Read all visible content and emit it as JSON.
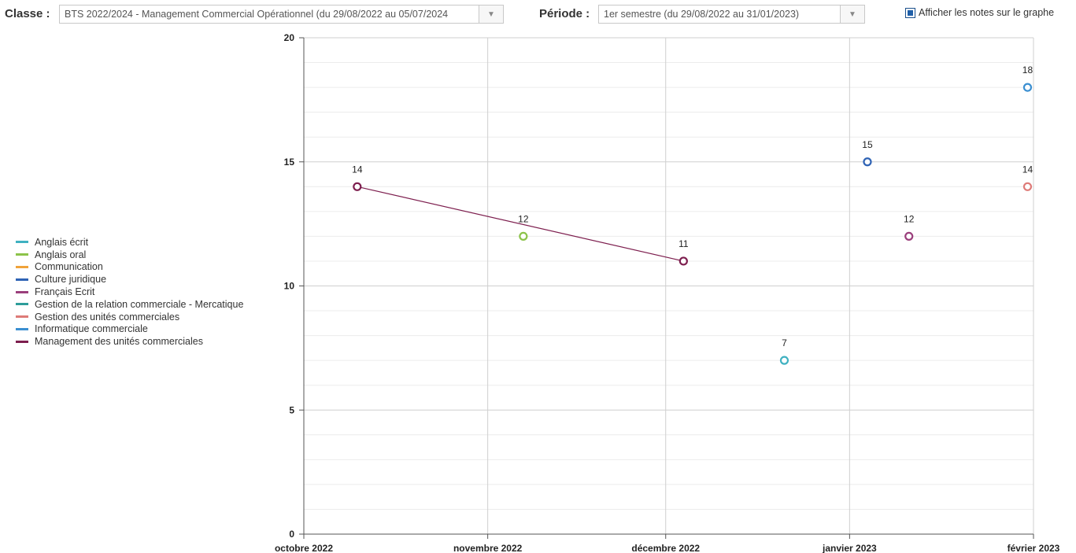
{
  "toolbar": {
    "classe_label": "Classe :",
    "classe_value": "BTS 2022/2024 - Management Commercial Opérationnel (du 29/08/2022 au 05/07/2024",
    "periode_label": "Période :",
    "periode_value": "1er semestre (du 29/08/2022 au 31/01/2023)",
    "show_notes_label": "Afficher les notes sur le graphe",
    "show_notes_checked": true
  },
  "chart_data": {
    "type": "line",
    "ylim": [
      0,
      20
    ],
    "yticks": [
      0,
      5,
      10,
      15,
      20
    ],
    "x_categories": [
      "octobre 2022",
      "novembre 2022",
      "décembre 2022",
      "janvier 2023",
      "février 2023"
    ],
    "grid": true,
    "legend_position": "left",
    "series": [
      {
        "name": "Anglais écrit",
        "color": "#3fb1c1",
        "points": [
          {
            "x": "2022-12-21",
            "y": 7
          }
        ]
      },
      {
        "name": "Anglais oral",
        "color": "#8cc34a",
        "points": [
          {
            "x": "2022-11-07",
            "y": 12
          }
        ]
      },
      {
        "name": "Communication",
        "color": "#f0a33a",
        "points": []
      },
      {
        "name": "Culture juridique",
        "color": "#2f63b5",
        "points": [
          {
            "x": "2023-01-04",
            "y": 15
          }
        ]
      },
      {
        "name": "Français Ecrit",
        "color": "#9b3f7c",
        "points": [
          {
            "x": "2023-01-11",
            "y": 12
          }
        ]
      },
      {
        "name": "Gestion de la relation commerciale - Mercatique",
        "color": "#2e9d9a",
        "points": []
      },
      {
        "name": "Gestion des unités commerciales",
        "color": "#de7b78",
        "points": [
          {
            "x": "2023-01-31",
            "y": 14
          }
        ]
      },
      {
        "name": "Informatique commerciale",
        "color": "#3b8fd1",
        "points": [
          {
            "x": "2023-01-31",
            "y": 18
          }
        ]
      },
      {
        "name": "Management des unités commerciales",
        "color": "#7d1e4e",
        "points": [
          {
            "x": "2022-10-10",
            "y": 14
          },
          {
            "x": "2022-12-04",
            "y": 11
          }
        ]
      }
    ]
  }
}
